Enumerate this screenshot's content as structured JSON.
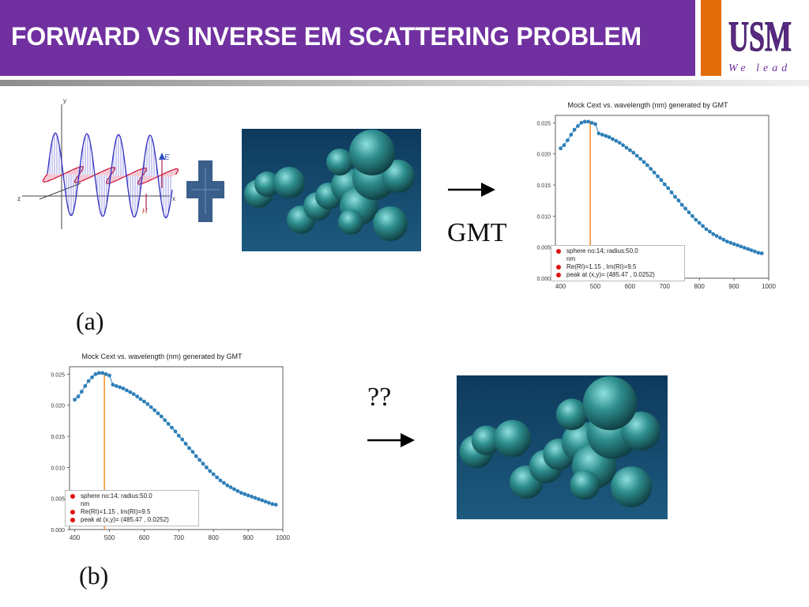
{
  "slide": {
    "title": "FORWARD VS INVERSE EM SCATTERING PROBLEM",
    "logo_text": "USM",
    "motto": "We lead"
  },
  "panel_a": {
    "label": "(a)",
    "wave_axis_labels": [
      "y",
      "z",
      "x"
    ],
    "field_labels": [
      "E",
      "H"
    ],
    "arrow_label": "GMT"
  },
  "panel_b": {
    "label": "(b)",
    "arrow_label": "??"
  },
  "colors": {
    "header": "#7030a0",
    "logo_band": "#e36c0a",
    "data_points": "#2e7fb8",
    "peak_line": "#f28c28",
    "cluster_background": "#0d3a5c",
    "sphere": "#2f8f8f"
  },
  "chart_data": [
    {
      "type": "scatter",
      "title": "Mock Cext vs. wavelength (nm) generated by GMT",
      "x_ticks": [
        400,
        500,
        600,
        700,
        800,
        900,
        1000
      ],
      "y_ticks": [
        "0.000",
        "0.005",
        "0.010",
        "0.015",
        "0.020",
        "0.025"
      ],
      "xlim": [
        385,
        1000
      ],
      "ylim": [
        0.0,
        0.0262
      ],
      "peak_line_x": 485.47,
      "legend": [
        "sphere no:14; radius:50.0",
        "nm",
        "Re(RI)=1.15 , Im(RI)=9.5",
        "peak at (x,y)= (485.47 , 0.0252)"
      ],
      "x": [
        400,
        410,
        420,
        430,
        440,
        450,
        460,
        470,
        480,
        490,
        500,
        510,
        520,
        530,
        540,
        550,
        560,
        570,
        580,
        590,
        600,
        610,
        620,
        630,
        640,
        650,
        660,
        670,
        680,
        690,
        700,
        710,
        720,
        730,
        740,
        750,
        760,
        770,
        780,
        790,
        800,
        810,
        820,
        830,
        840,
        850,
        860,
        870,
        880,
        890,
        900,
        910,
        920,
        930,
        940,
        950,
        960,
        970,
        980
      ],
      "y": [
        0.0209,
        0.0214,
        0.0222,
        0.0231,
        0.0239,
        0.0245,
        0.025,
        0.0252,
        0.0252,
        0.025,
        0.0248,
        0.0233,
        0.0231,
        0.0229,
        0.0227,
        0.0224,
        0.0221,
        0.0218,
        0.0214,
        0.021,
        0.0206,
        0.0202,
        0.0197,
        0.0192,
        0.0187,
        0.0182,
        0.0176,
        0.017,
        0.0164,
        0.0158,
        0.0151,
        0.0145,
        0.0138,
        0.0131,
        0.0125,
        0.0118,
        0.0112,
        0.0106,
        0.01,
        0.0094,
        0.0089,
        0.0084,
        0.0079,
        0.0075,
        0.0071,
        0.0068,
        0.0065,
        0.0062,
        0.0059,
        0.0057,
        0.0055,
        0.0053,
        0.0051,
        0.0049,
        0.0047,
        0.0045,
        0.0043,
        0.0041,
        0.004
      ]
    }
  ]
}
